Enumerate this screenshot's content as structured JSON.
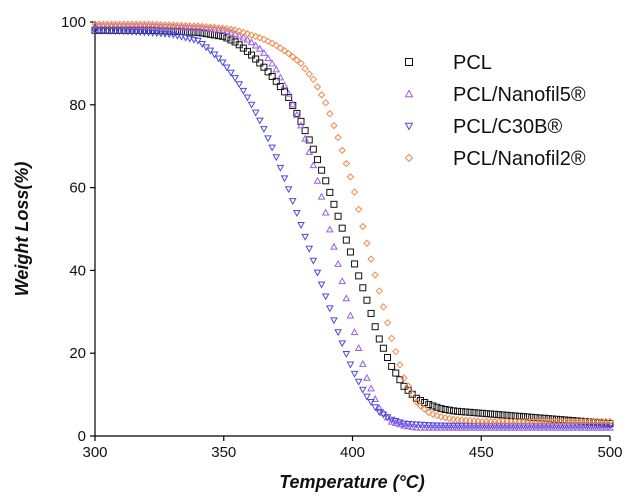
{
  "chart_data": {
    "type": "scatter",
    "title": "",
    "xlabel": "Temperature (°C)",
    "ylabel": "Weight Loss(%)",
    "xlim": [
      300,
      500
    ],
    "ylim": [
      0,
      100
    ],
    "xticks": [
      "300",
      "350",
      "400",
      "450",
      "500"
    ],
    "yticks": [
      "0",
      "20",
      "40",
      "60",
      "80",
      "100"
    ],
    "grid": false,
    "legend_position": "top-right",
    "series": [
      {
        "name": "PCL",
        "marker": "square",
        "color": "#111111",
        "x": [
          300,
          320,
          340,
          350,
          355,
          360,
          365,
          370,
          375,
          380,
          385,
          390,
          395,
          400,
          405,
          410,
          415,
          420,
          425,
          430,
          435,
          440,
          450,
          460,
          470,
          480,
          490,
          500
        ],
        "y": [
          98,
          98,
          97.5,
          96.5,
          95,
          92.5,
          89.5,
          86,
          82,
          76,
          69,
          61,
          52,
          43,
          34,
          24,
          17,
          12,
          9,
          7.5,
          6.5,
          6,
          5.5,
          5,
          4.5,
          4,
          3.5,
          3
        ]
      },
      {
        "name": "PCL/Nanofil5®",
        "marker": "triangle-up",
        "color": "#9b5de5",
        "x": [
          300,
          320,
          340,
          350,
          355,
          360,
          365,
          370,
          375,
          380,
          385,
          390,
          395,
          400,
          405,
          410,
          415,
          420,
          425,
          430,
          435,
          440,
          450,
          460,
          470,
          480,
          490,
          500
        ],
        "y": [
          99,
          99,
          98.5,
          98,
          97,
          95.5,
          93,
          89,
          83,
          75,
          65,
          53,
          40,
          27,
          15,
          7,
          3.5,
          2.5,
          2,
          2,
          2,
          2,
          2,
          2,
          2,
          2,
          2,
          2
        ]
      },
      {
        "name": "PCL/C30B®",
        "marker": "triangle-down",
        "color": "#4a4ae0",
        "x": [
          300,
          320,
          330,
          340,
          345,
          350,
          355,
          360,
          365,
          370,
          375,
          380,
          385,
          390,
          395,
          400,
          405,
          410,
          415,
          420,
          425,
          430,
          440,
          450,
          460,
          470,
          480,
          490,
          500
        ],
        "y": [
          98,
          97.5,
          97,
          95.5,
          93,
          90,
          86,
          81,
          75,
          68,
          60,
          51,
          42,
          33,
          24,
          16,
          10,
          6,
          4,
          3,
          2.8,
          2.6,
          2.5,
          2.5,
          2.5,
          2.5,
          2.5,
          2.5,
          2.5
        ]
      },
      {
        "name": "PCL/Nanofil2®",
        "marker": "diamond",
        "color": "#f08a4b",
        "x": [
          300,
          320,
          340,
          350,
          355,
          360,
          365,
          370,
          375,
          380,
          385,
          390,
          395,
          400,
          405,
          410,
          415,
          420,
          425,
          430,
          435,
          440,
          450,
          460,
          470,
          480,
          490,
          500
        ],
        "y": [
          99.5,
          99.5,
          99,
          98.5,
          98,
          97,
          96,
          94.5,
          92.5,
          90,
          86,
          80,
          71,
          61,
          48,
          36,
          24,
          14,
          8,
          5.5,
          4.5,
          4,
          3.5,
          3.5,
          3.5,
          3.5,
          3.5,
          3.5
        ]
      }
    ]
  }
}
